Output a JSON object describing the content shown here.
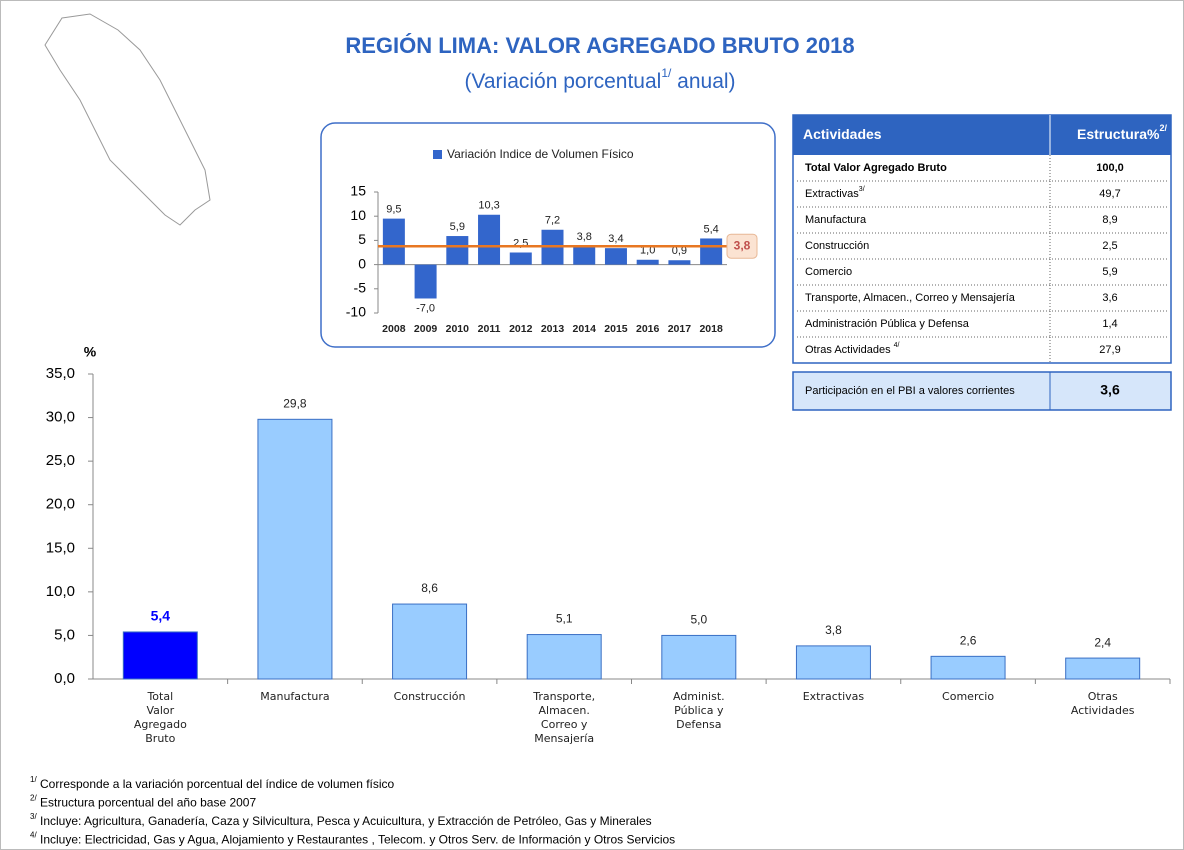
{
  "title": "REGIÓN LIMA: VALOR AGREGADO BRUTO 2018",
  "subtitle": {
    "text": "(Variación porcentual",
    "sup": "1/",
    "tail": " anual)"
  },
  "chart_data": [
    {
      "type": "bar",
      "legend": "Variación Indice de Volumen Físico",
      "color": "#3366cc",
      "categories": [
        "2008",
        "2009",
        "2010",
        "2011",
        "2012",
        "2013",
        "2014",
        "2015",
        "2016",
        "2017",
        "2018"
      ],
      "values": [
        9.5,
        -7.0,
        5.9,
        10.3,
        2.5,
        7.2,
        3.8,
        3.4,
        1.0,
        0.9,
        5.4
      ],
      "value_labels": [
        "9,5",
        "-7,0",
        "5,9",
        "10,3",
        "2,5",
        "7,2",
        "3,8",
        "3,4",
        "1,0",
        "0,9",
        "5,4"
      ],
      "ylim": [
        -10,
        15
      ],
      "yticks": [
        -10,
        -5,
        0,
        5,
        10,
        15
      ],
      "reference_line": {
        "value": 3.8,
        "label": "3,8",
        "color": "#e87722"
      }
    },
    {
      "type": "bar",
      "y_label": "%",
      "color": "#99ccff",
      "colors": [
        "#0000ff",
        "#99ccff",
        "#99ccff",
        "#99ccff",
        "#99ccff",
        "#99ccff",
        "#99ccff",
        "#99ccff"
      ],
      "categories": [
        "Total\nValor\nAgregado\nBruto",
        "Manufactura",
        "Construcción",
        "Transporte,\nAlmacen.\nCorreo y\nMensajería",
        "Administ.\nPública y\nDefensa",
        "Extractivas",
        "Comercio",
        "Otras\nActividades"
      ],
      "values": [
        5.4,
        29.8,
        8.6,
        5.1,
        5.0,
        3.8,
        2.6,
        2.4
      ],
      "value_labels": [
        "5,4",
        "29,8",
        "8,6",
        "5,1",
        "5,0",
        "3,8",
        "2,6",
        "2,4"
      ],
      "ylim": [
        0,
        35
      ],
      "yticks": [
        {
          "value": 0,
          "label": "0,0"
        },
        {
          "value": 5,
          "label": "5,0"
        },
        {
          "value": 10,
          "label": "10,0"
        },
        {
          "value": 15,
          "label": "15,0"
        },
        {
          "value": 20,
          "label": "20,0"
        },
        {
          "value": 25,
          "label": "25,0"
        },
        {
          "value": 30,
          "label": "30,0"
        },
        {
          "value": 35,
          "label": "35,0"
        }
      ]
    }
  ],
  "table": {
    "header": [
      {
        "text": "Actividades"
      },
      {
        "text": "Estructura%",
        "sup": "2/"
      }
    ],
    "rows": [
      {
        "label": "Total  Valor Agregado Bruto",
        "value": "100,0"
      },
      {
        "label": "Extractivas",
        "sup": "3/",
        "value": "49,7"
      },
      {
        "label": "Manufactura",
        "value": "8,9"
      },
      {
        "label": "Construcción",
        "value": "2,5"
      },
      {
        "label": "Comercio",
        "value": "5,9"
      },
      {
        "label": "Transporte, Almacen., Correo y Mensajería",
        "value": "3,6"
      },
      {
        "label": "Administración Pública y Defensa",
        "value": "1,4"
      },
      {
        "label": "Otras Actividades ",
        "sup": "4/",
        "value": "27,9"
      }
    ],
    "participation": {
      "label": "Participación en el PBI a valores corrientes",
      "value": "3,6"
    }
  },
  "footnotes": [
    {
      "sup": "1/",
      "text": " Corresponde a la variación porcentual del índice de volumen físico"
    },
    {
      "sup": "2/",
      "text": " Estructura porcentual del año base 2007"
    },
    {
      "sup": "3/",
      "text": " Incluye: Agricultura, Ganadería, Caza y Silvicultura, Pesca y Acuicultura, y  Extracción de Petróleo, Gas y Minerales"
    },
    {
      "sup": "4/",
      "text": " Incluye: Electricidad, Gas y Agua, Alojamiento y Restaurantes , Telecom. y Otros Serv. de Información y Otros Servicios"
    }
  ]
}
